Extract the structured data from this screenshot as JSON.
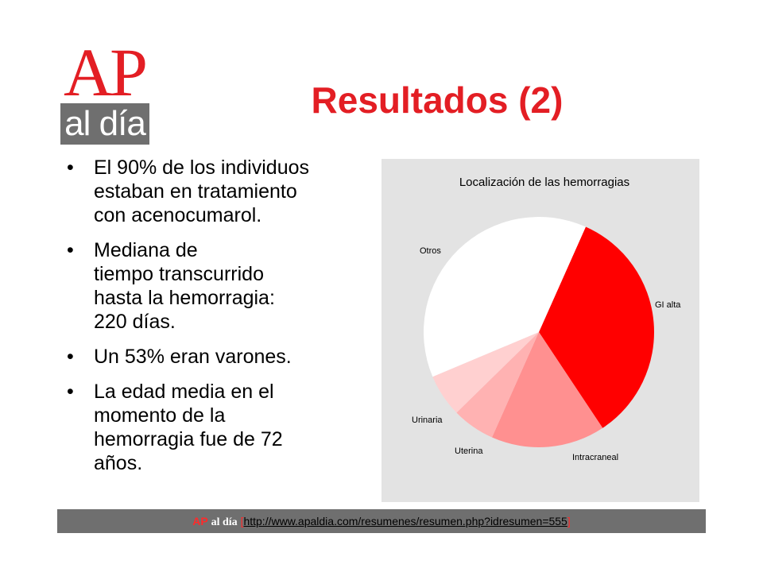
{
  "logo": {
    "top": "AP",
    "bottom": "al día"
  },
  "slide": {
    "title": "Resultados (2)"
  },
  "bullets": [
    {
      "lines": [
        "El 90% de los individuos",
        "estaban en tratamiento",
        "con acenocumarol."
      ]
    },
    {
      "lines": [
        "Mediana de",
        "tiempo transcurrido",
        "hasta la hemorragia:",
        "220 días."
      ]
    },
    {
      "lines": [
        "Un 53% eran varones."
      ]
    },
    {
      "lines": [
        "La edad media en el",
        "momento de la",
        "hemorragia fue de 72",
        "años."
      ]
    }
  ],
  "chart_data": {
    "type": "pie",
    "title": "Localización de las hemorragias",
    "series": [
      {
        "label": "GI alta",
        "value": 34,
        "color": "#ff0000"
      },
      {
        "label": "Intracraneal",
        "value": 16,
        "color": "#ff9090"
      },
      {
        "label": "Uterina",
        "value": 6,
        "color": "#ffb2b2"
      },
      {
        "label": "Urinaria",
        "value": 6,
        "color": "#ffd0d0"
      },
      {
        "label": "Otros",
        "value": 38,
        "color": "#ffffff"
      }
    ]
  },
  "footer": {
    "brand_ap": "AP",
    "brand_al": "al día",
    "bracket_open": "[",
    "link": "http://www.apaldia.com/resumenes/resumen.php?idresumen=555",
    "bracket_close": "]"
  }
}
